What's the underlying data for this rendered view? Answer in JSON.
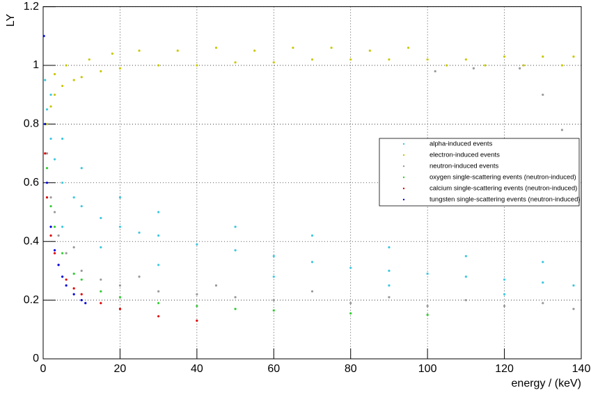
{
  "chart_data": {
    "type": "scatter",
    "x_label": "energy / (keV)",
    "y_label": "LY",
    "xlim": [
      0,
      140
    ],
    "ylim": [
      0,
      1.2
    ],
    "xticks": [
      0,
      20,
      40,
      60,
      80,
      100,
      120,
      140
    ],
    "yticks": [
      0,
      0.2,
      0.4,
      0.6,
      0.8,
      1,
      1.2
    ],
    "grid": true,
    "legend": "right",
    "series": [
      {
        "name": "alpha-induced events",
        "color": "#3cc8e0",
        "x": [
          0.5,
          1,
          2,
          3,
          5,
          8,
          10,
          15,
          20,
          25,
          30,
          40,
          50,
          60,
          70,
          80,
          90,
          100,
          110,
          120,
          130,
          138,
          2,
          5,
          10,
          20,
          30,
          50,
          70,
          90,
          110,
          130,
          5,
          15,
          30,
          60,
          90,
          120
        ],
        "y": [
          0.95,
          0.85,
          0.75,
          0.68,
          0.6,
          0.55,
          0.52,
          0.48,
          0.45,
          0.43,
          0.42,
          0.39,
          0.37,
          0.35,
          0.33,
          0.31,
          0.3,
          0.29,
          0.28,
          0.27,
          0.26,
          0.25,
          0.9,
          0.75,
          0.65,
          0.55,
          0.5,
          0.45,
          0.42,
          0.38,
          0.35,
          0.33,
          0.45,
          0.38,
          0.32,
          0.28,
          0.25,
          0.22
        ]
      },
      {
        "name": "electron-induced events",
        "color": "#c8c800",
        "x": [
          1,
          2,
          3,
          5,
          8,
          10,
          15,
          20,
          30,
          40,
          50,
          60,
          70,
          80,
          90,
          100,
          110,
          120,
          130,
          138,
          3,
          6,
          12,
          18,
          25,
          35,
          45,
          55,
          65,
          75,
          85,
          95,
          105,
          115,
          125,
          135
        ],
        "y": [
          0.8,
          0.86,
          0.9,
          0.93,
          0.95,
          0.96,
          0.98,
          0.99,
          1.0,
          1.0,
          1.01,
          1.01,
          1.02,
          1.02,
          1.02,
          1.02,
          1.02,
          1.03,
          1.03,
          1.03,
          0.97,
          1.0,
          1.02,
          1.04,
          1.05,
          1.05,
          1.06,
          1.05,
          1.06,
          1.06,
          1.05,
          1.06,
          1.0,
          1.0,
          1.0,
          1.0
        ]
      },
      {
        "name": "neutron-induced events",
        "color": "#999999",
        "x": [
          1,
          2,
          4,
          6,
          10,
          15,
          20,
          30,
          40,
          50,
          60,
          80,
          100,
          120,
          138,
          3,
          8,
          25,
          45,
          70,
          90,
          110,
          130,
          102,
          112,
          124,
          130,
          135
        ],
        "y": [
          0.7,
          0.55,
          0.42,
          0.36,
          0.3,
          0.27,
          0.25,
          0.23,
          0.22,
          0.21,
          0.2,
          0.19,
          0.18,
          0.18,
          0.17,
          0.5,
          0.38,
          0.28,
          0.25,
          0.23,
          0.21,
          0.2,
          0.19,
          0.98,
          0.99,
          0.99,
          0.9,
          0.78
        ]
      },
      {
        "name": "oxygen single-scattering events (neutron-induced)",
        "color": "#33cc33",
        "x": [
          0.5,
          1,
          2,
          3,
          5,
          8,
          10,
          15,
          20,
          30,
          40,
          50,
          60,
          80,
          100
        ],
        "y": [
          0.8,
          0.65,
          0.52,
          0.45,
          0.36,
          0.29,
          0.27,
          0.23,
          0.21,
          0.19,
          0.18,
          0.17,
          0.165,
          0.155,
          0.15
        ]
      },
      {
        "name": "calcium single-scattering events (neutron-induced)",
        "color": "#e00000",
        "x": [
          0.5,
          1,
          2,
          3,
          4,
          6,
          8,
          10,
          15,
          20,
          30,
          40
        ],
        "y": [
          0.7,
          0.55,
          0.42,
          0.36,
          0.32,
          0.27,
          0.24,
          0.22,
          0.19,
          0.17,
          0.145,
          0.13
        ]
      },
      {
        "name": "tungsten single-scattering events (neutron-induced)",
        "color": "#0000dd",
        "x": [
          0.2,
          0.5,
          1,
          2,
          3,
          4,
          5,
          6,
          8,
          10,
          11
        ],
        "y": [
          1.1,
          0.8,
          0.6,
          0.45,
          0.37,
          0.32,
          0.28,
          0.25,
          0.22,
          0.2,
          0.19
        ]
      }
    ]
  }
}
